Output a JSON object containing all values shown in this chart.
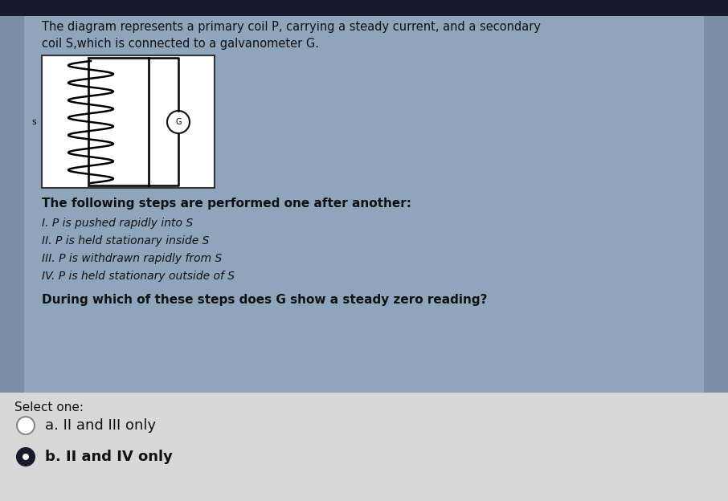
{
  "bg_top_bar": "#1a1a2e",
  "bg_outer": "#7a8fa6",
  "bg_question_box": "#8fa5bc",
  "bg_answer_box": "#d8d8d8",
  "title_text_line1": "The diagram represents a primary coil P, carrying a steady current, and a secondary",
  "title_text_line2": "coil S,which is connected to a galvanometer G.",
  "following_text": "The following steps are performed one after another:",
  "steps": [
    "I. P is pushed rapidly into S",
    "II. P is held stationary inside S",
    "III. P is withdrawn rapidly from S",
    "IV. P is held stationary outside of S"
  ],
  "question_text": "During which of these steps does G show a steady zero reading?",
  "select_text": "Select one:",
  "option_a": "a. II and III only",
  "option_b": "b. II and IV only",
  "text_color_dark": "#111111",
  "font_size_title": 10.5,
  "font_size_steps": 10.0,
  "font_size_following": 11.0,
  "font_size_question": 11.0,
  "font_size_options": 13.0,
  "font_size_select": 11.0
}
